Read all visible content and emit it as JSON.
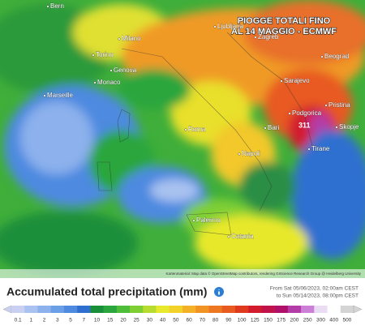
{
  "map": {
    "title_lines": [
      "PIOGGE TOTALI FINO",
      "AL 14 MAGGIO - ECMWF"
    ],
    "places": [
      "Bern",
      "Milano",
      "Torino",
      "Genova",
      "Monaco",
      "Marseille",
      "Ljubljana",
      "Zagreb",
      "Beograd",
      "Sarajevo",
      "Podgorica",
      "Pristina",
      "Skopje",
      "Tirane",
      "Roma",
      "Napoli",
      "Bari",
      "Palermo",
      "Catania"
    ],
    "max_value": "311",
    "attribution": "Kartenmaterial: Map data © OpenStreetMap contributors, rendering GIScience Research Group @ Heidelberg University"
  },
  "legend": {
    "title": "Accumulated total precipitation (mm)",
    "period": [
      "From Sat 05/06/2023, 02:00am CEST",
      "to Sun 05/14/2023, 08:00pm CEST"
    ],
    "ticks": [
      "0.1",
      "1",
      "2",
      "3",
      "5",
      "7",
      "10",
      "15",
      "20",
      "25",
      "30",
      "40",
      "50",
      "60",
      "70",
      "80",
      "90",
      "100",
      "125",
      "150",
      "175",
      "200",
      "250",
      "300",
      "400",
      "500"
    ],
    "colors": [
      "#c9d0f2",
      "#a9c2f0",
      "#8cb1ec",
      "#6a9ee6",
      "#4d8ae0",
      "#2f6fd0",
      "#1a8f3a",
      "#2aa63c",
      "#4dbd3a",
      "#7fcf34",
      "#b6dc30",
      "#e8e82c",
      "#f2d12a",
      "#f4b027",
      "#f29425",
      "#ee7722",
      "#e85a20",
      "#e03a1e",
      "#d21c2e",
      "#c2124a",
      "#b0106a",
      "#b43ca8",
      "#cc7fd6",
      "#eadcf2",
      "#ffffff",
      "#d4d4d4"
    ]
  }
}
